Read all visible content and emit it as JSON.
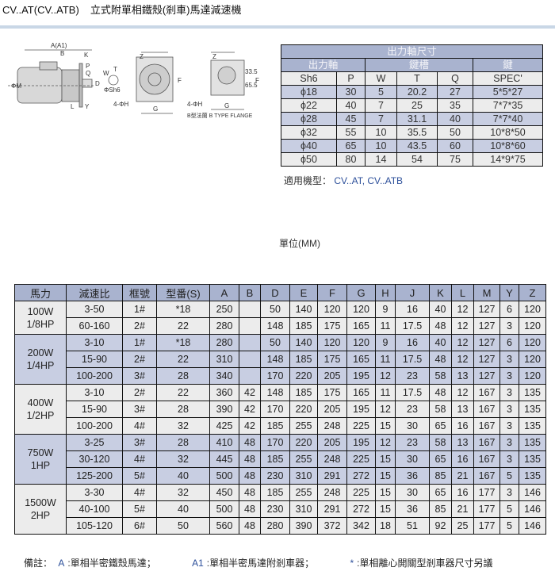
{
  "title": {
    "model": "CV..AT(CV..ATB)",
    "name": "立式附單相鐵殼(剎車)馬達減速機"
  },
  "drawing": {
    "labels": {
      "a": "A(A1)",
      "b": "B",
      "k": "K",
      "p": "P",
      "q": "Q",
      "m": "ΦM",
      "w": "W",
      "t": "T",
      "sh6": "ΦSh6",
      "d": "D",
      "l": "L",
      "y": "Y",
      "z1": "Z",
      "f1": "F",
      "h1": "4-ΦH",
      "g1": "G",
      "z2": "Z",
      "f2": "F",
      "h2": "4-ΦH",
      "g2": "G",
      "d1": "33.5",
      "d2": "65.5",
      "flange": "B型法蘭 B TYPE FLANGE"
    }
  },
  "shaft_table": {
    "title": "出力軸尺寸",
    "groups": [
      "出力軸",
      "鍵槽",
      "鍵"
    ],
    "columns": [
      "Sh6",
      "P",
      "W",
      "T",
      "Q",
      "SPEC'"
    ],
    "rows": [
      [
        "ϕ18",
        "30",
        "5",
        "20.2",
        "27",
        "5*5*27"
      ],
      [
        "ϕ22",
        "40",
        "7",
        "25",
        "35",
        "7*7*35"
      ],
      [
        "ϕ28",
        "45",
        "7",
        "31.1",
        "40",
        "7*7*40"
      ],
      [
        "ϕ32",
        "55",
        "10",
        "35.5",
        "50",
        "10*8*50"
      ],
      [
        "ϕ40",
        "65",
        "10",
        "43.5",
        "60",
        "10*8*60"
      ],
      [
        "ϕ50",
        "80",
        "14",
        "54",
        "75",
        "14*9*75"
      ]
    ],
    "applicable_label": "適用機型：",
    "applicable_value": "CV..AT, CV..ATB"
  },
  "unit": "單位(MM)",
  "main_table": {
    "columns": [
      "馬力",
      "減速比",
      "框號",
      "型番(S)",
      "A",
      "B",
      "D",
      "E",
      "F",
      "G",
      "H",
      "J",
      "K",
      "L",
      "M",
      "Y",
      "Z"
    ],
    "groups": [
      {
        "power": [
          "100W",
          "1/8HP"
        ],
        "rows": [
          [
            "3-50",
            "1#",
            "*18",
            "250",
            "",
            "50",
            "140",
            "120",
            "120",
            "9",
            "16",
            "40",
            "12",
            "127",
            "6",
            "120"
          ],
          [
            "60-160",
            "2#",
            "22",
            "280",
            "",
            "148",
            "185",
            "175",
            "165",
            "11",
            "17.5",
            "48",
            "12",
            "127",
            "3",
            "120"
          ]
        ]
      },
      {
        "power": [
          "200W",
          "1/4HP"
        ],
        "rows": [
          [
            "3-10",
            "1#",
            "*18",
            "280",
            "",
            "50",
            "140",
            "120",
            "120",
            "9",
            "16",
            "40",
            "12",
            "127",
            "6",
            "120"
          ],
          [
            "15-90",
            "2#",
            "22",
            "310",
            "",
            "148",
            "185",
            "175",
            "165",
            "11",
            "17.5",
            "48",
            "12",
            "127",
            "3",
            "120"
          ],
          [
            "100-200",
            "3#",
            "28",
            "340",
            "",
            "170",
            "220",
            "205",
            "195",
            "12",
            "23",
            "58",
            "13",
            "127",
            "3",
            "120"
          ]
        ]
      },
      {
        "power": [
          "400W",
          "1/2HP"
        ],
        "rows": [
          [
            "3-10",
            "2#",
            "22",
            "360",
            "42",
            "148",
            "185",
            "175",
            "165",
            "11",
            "17.5",
            "48",
            "12",
            "167",
            "3",
            "135"
          ],
          [
            "15-90",
            "3#",
            "28",
            "390",
            "42",
            "170",
            "220",
            "205",
            "195",
            "12",
            "23",
            "58",
            "13",
            "167",
            "3",
            "135"
          ],
          [
            "100-200",
            "4#",
            "32",
            "425",
            "42",
            "185",
            "255",
            "248",
            "225",
            "15",
            "30",
            "65",
            "16",
            "167",
            "3",
            "135"
          ]
        ]
      },
      {
        "power": [
          "750W",
          "1HP"
        ],
        "rows": [
          [
            "3-25",
            "3#",
            "28",
            "410",
            "48",
            "170",
            "220",
            "205",
            "195",
            "12",
            "23",
            "58",
            "13",
            "167",
            "3",
            "135"
          ],
          [
            "30-120",
            "4#",
            "32",
            "445",
            "48",
            "185",
            "255",
            "248",
            "225",
            "15",
            "30",
            "65",
            "16",
            "167",
            "3",
            "135"
          ],
          [
            "125-200",
            "5#",
            "40",
            "500",
            "48",
            "230",
            "310",
            "291",
            "272",
            "15",
            "36",
            "85",
            "21",
            "167",
            "5",
            "135"
          ]
        ]
      },
      {
        "power": [
          "1500W",
          "2HP"
        ],
        "rows": [
          [
            "3-30",
            "4#",
            "32",
            "450",
            "48",
            "185",
            "255",
            "248",
            "225",
            "15",
            "30",
            "65",
            "16",
            "177",
            "3",
            "146"
          ],
          [
            "40-100",
            "5#",
            "40",
            "500",
            "48",
            "230",
            "310",
            "291",
            "272",
            "15",
            "36",
            "85",
            "21",
            "177",
            "5",
            "146"
          ],
          [
            "105-120",
            "6#",
            "50",
            "560",
            "48",
            "280",
            "390",
            "372",
            "342",
            "18",
            "51",
            "92",
            "25",
            "177",
            "5",
            "146"
          ]
        ]
      }
    ]
  },
  "footer": {
    "label": "備註：",
    "notes": [
      {
        "key": "A",
        "text": ":單相半密鐵殼馬達；"
      },
      {
        "key": "A1",
        "text": ":單相半密馬達附剎車器；"
      },
      {
        "key": "*",
        "text": ":單相離心開關型剎車器尺寸另議"
      }
    ]
  },
  "colors": {
    "header": "#a9b3cf",
    "shaded_row": "#c8cee2",
    "light_row": "#ececec",
    "rule": "#c9d7e6"
  }
}
